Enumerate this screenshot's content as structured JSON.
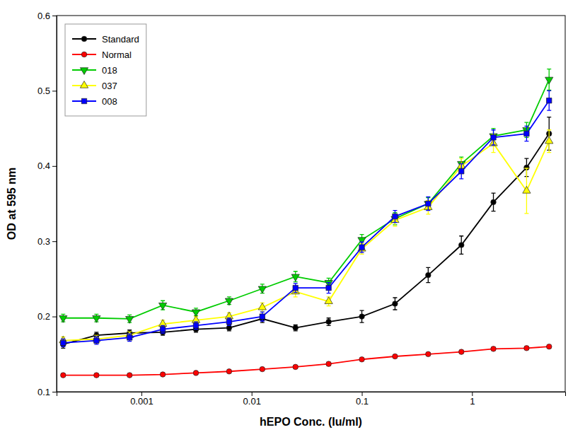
{
  "chart_data": {
    "type": "line",
    "xlabel": "hEPO Conc. (Iu/ml)",
    "ylabel": "OD at 595 nm",
    "log": "x",
    "xlim": [
      0.00017,
      7
    ],
    "ylim": [
      0.1,
      0.6
    ],
    "xticks": [
      0.001,
      0.01,
      0.1,
      1
    ],
    "yticks": [
      0.1,
      0.2,
      0.3,
      0.4,
      0.5,
      0.6
    ],
    "grid": false,
    "legend": "upper left",
    "series": [
      {
        "name": "Standard",
        "color": "#000000",
        "marker": "circle",
        "line_style": "solid",
        "x": [
          0.000195,
          0.000391,
          0.000781,
          0.001563,
          0.003125,
          0.00625,
          0.0125,
          0.025,
          0.05,
          0.1,
          0.2,
          0.4,
          0.8,
          1.5625,
          3.125,
          5.0
        ],
        "values": [
          0.163,
          0.175,
          0.178,
          0.179,
          0.183,
          0.185,
          0.197,
          0.185,
          0.193,
          0.2,
          0.217,
          0.255,
          0.295,
          0.352,
          0.398,
          0.443
        ],
        "errors": [
          0.005,
          0.004,
          0.004,
          0.004,
          0.004,
          0.004,
          0.005,
          0.004,
          0.005,
          0.008,
          0.008,
          0.01,
          0.012,
          0.012,
          0.012,
          0.022
        ]
      },
      {
        "name": "Normal",
        "color": "#ff0000",
        "marker": "circle",
        "line_style": "solid",
        "x": [
          0.000195,
          0.000391,
          0.000781,
          0.001563,
          0.003125,
          0.00625,
          0.0125,
          0.025,
          0.05,
          0.1,
          0.2,
          0.4,
          0.8,
          1.5625,
          3.125,
          5.0
        ],
        "values": [
          0.122,
          0.122,
          0.122,
          0.123,
          0.125,
          0.127,
          0.13,
          0.133,
          0.137,
          0.143,
          0.147,
          0.15,
          0.153,
          0.157,
          0.158,
          0.16
        ],
        "errors": [
          0.002,
          0.002,
          0.002,
          0.002,
          0.002,
          0.002,
          0.002,
          0.002,
          0.002,
          0.002,
          0.002,
          0.002,
          0.002,
          0.002,
          0.002,
          0.002
        ]
      },
      {
        "name": "018",
        "color": "#00cc00",
        "marker": "triangle-down",
        "line_style": "solid",
        "x": [
          0.000195,
          0.000391,
          0.000781,
          0.001563,
          0.003125,
          0.00625,
          0.0125,
          0.025,
          0.05,
          0.1,
          0.2,
          0.4,
          0.8,
          1.5625,
          3.125,
          5.0
        ],
        "values": [
          0.198,
          0.198,
          0.197,
          0.215,
          0.206,
          0.221,
          0.237,
          0.253,
          0.245,
          0.302,
          0.33,
          0.35,
          0.403,
          0.44,
          0.448,
          0.515
        ],
        "errors": [
          0.005,
          0.005,
          0.005,
          0.006,
          0.005,
          0.005,
          0.006,
          0.007,
          0.006,
          0.007,
          0.008,
          0.008,
          0.009,
          0.01,
          0.01,
          0.014
        ]
      },
      {
        "name": "037",
        "color": "#ffff00",
        "marker": "triangle-up",
        "line_style": "solid",
        "x": [
          0.000195,
          0.000391,
          0.000781,
          0.001563,
          0.003125,
          0.00625,
          0.0125,
          0.025,
          0.05,
          0.1,
          0.2,
          0.4,
          0.8,
          1.5625,
          3.125,
          5.0
        ],
        "values": [
          0.168,
          0.17,
          0.175,
          0.19,
          0.195,
          0.2,
          0.212,
          0.233,
          0.22,
          0.29,
          0.328,
          0.345,
          0.4,
          0.43,
          0.367,
          0.433
        ],
        "errors": [
          0.005,
          0.005,
          0.005,
          0.005,
          0.005,
          0.005,
          0.006,
          0.007,
          0.006,
          0.007,
          0.008,
          0.009,
          0.01,
          0.012,
          0.03,
          0.015
        ]
      },
      {
        "name": "008",
        "color": "#0000ff",
        "marker": "square",
        "line_style": "solid",
        "x": [
          0.000195,
          0.000391,
          0.000781,
          0.001563,
          0.003125,
          0.00625,
          0.0125,
          0.025,
          0.05,
          0.1,
          0.2,
          0.4,
          0.8,
          1.5625,
          3.125,
          5.0
        ],
        "values": [
          0.165,
          0.168,
          0.172,
          0.183,
          0.188,
          0.193,
          0.2,
          0.238,
          0.238,
          0.292,
          0.333,
          0.35,
          0.393,
          0.438,
          0.443,
          0.487
        ],
        "errors": [
          0.005,
          0.005,
          0.005,
          0.005,
          0.005,
          0.005,
          0.006,
          0.006,
          0.007,
          0.007,
          0.008,
          0.009,
          0.01,
          0.01,
          0.01,
          0.013
        ]
      }
    ]
  }
}
